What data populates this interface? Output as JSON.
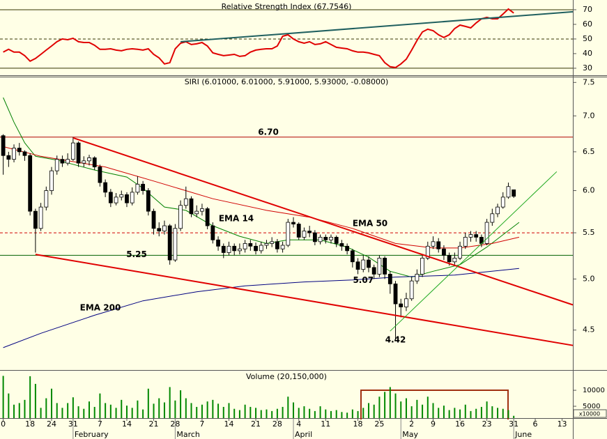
{
  "chart_data": [
    {
      "type": "line",
      "title": "Relative Strength Index (67.7546)",
      "color": "#e00000",
      "xlim": [
        -0.6,
        106
      ],
      "ylim": [
        25.2,
        75.7
      ],
      "yticks": [
        30,
        40,
        50,
        60,
        70
      ],
      "hlines": [
        {
          "value": 70,
          "color": "#333300"
        },
        {
          "value": 50,
          "color": "#333300",
          "dashed": true
        },
        {
          "value": 30,
          "color": "#333300"
        }
      ],
      "trendlines": [
        {
          "x": [
            33,
            106
          ],
          "values": [
            48.1,
            68.6
          ],
          "color": "#1f5f5f"
        }
      ],
      "x": [
        0,
        1,
        2,
        3,
        4,
        5,
        6,
        7,
        8,
        9,
        10,
        11,
        12,
        13,
        14,
        15,
        16,
        17,
        18,
        19,
        20,
        21,
        22,
        23,
        24,
        25,
        26,
        27,
        28,
        29,
        30,
        31,
        32,
        33,
        34,
        35,
        36,
        37,
        38,
        39,
        40,
        41,
        42,
        43,
        44,
        45,
        46,
        47,
        48,
        49,
        50,
        51,
        52,
        53,
        54,
        55,
        56,
        57,
        58,
        59,
        60,
        61,
        62,
        63,
        64,
        65,
        66,
        67,
        68,
        69,
        70,
        71,
        72,
        73,
        74,
        75,
        76,
        77,
        78,
        79,
        80,
        81,
        82,
        83,
        84,
        85,
        86,
        87,
        88,
        89,
        90,
        91,
        92,
        93,
        94,
        95
      ],
      "values": [
        41,
        42.9,
        41,
        41,
        38.6,
        34.8,
        36.7,
        39.5,
        42.4,
        45.2,
        48.1,
        50,
        49.5,
        50.5,
        48.1,
        47.6,
        47.6,
        45.7,
        42.9,
        42.9,
        43.3,
        42.4,
        41.9,
        42.9,
        43.3,
        42.9,
        42.4,
        43.3,
        39.5,
        37.1,
        32.9,
        33.8,
        43.3,
        47.1,
        48.1,
        46.2,
        46.7,
        47.6,
        45.2,
        40.5,
        39.5,
        38.6,
        39,
        39.5,
        38.1,
        38.6,
        41,
        42.4,
        42.9,
        43.3,
        43.3,
        45.2,
        51.9,
        52.9,
        50,
        48.1,
        47.1,
        48.1,
        46.2,
        46.7,
        48.1,
        46.2,
        44.3,
        43.8,
        43.3,
        41.9,
        41,
        41,
        40.5,
        39.5,
        38.6,
        33.8,
        31,
        30.5,
        32.9,
        36.2,
        42.4,
        49,
        54.8,
        56.7,
        55.7,
        52.9,
        51,
        52.9,
        57.1,
        59.5,
        58.6,
        57.6,
        61,
        63.8,
        64.8,
        63.8,
        63.8,
        67.1,
        70.5,
        67.7546
      ]
    },
    {
      "type": "candlestick",
      "title": "SIRI (6.01000, 6.01000, 5.91000, 5.93000, -0.08000)",
      "log_scale": true,
      "xlim": [
        -0.6,
        106
      ],
      "ylim": [
        4.15,
        7.59
      ],
      "yticks": [
        4.5,
        {
          "value": 5,
          "label": "5.0"
        },
        5.5,
        {
          "value": 6,
          "label": "6.0"
        },
        6.5,
        {
          "value": 7,
          "label": "7.0"
        },
        7.5
      ],
      "color_up": "#ffffff",
      "color_down": "#000000",
      "x": [
        0,
        1,
        2,
        3,
        4,
        5,
        6,
        7,
        8,
        9,
        10,
        11,
        12,
        13,
        14,
        15,
        16,
        17,
        18,
        19,
        20,
        21,
        22,
        23,
        24,
        25,
        26,
        27,
        28,
        29,
        30,
        31,
        32,
        33,
        34,
        35,
        36,
        37,
        38,
        39,
        40,
        41,
        42,
        43,
        44,
        45,
        46,
        47,
        48,
        49,
        50,
        51,
        52,
        53,
        54,
        55,
        56,
        57,
        58,
        59,
        60,
        61,
        62,
        63,
        64,
        65,
        66,
        67,
        68,
        69,
        70,
        71,
        72,
        73,
        74,
        75,
        76,
        77,
        78,
        79,
        80,
        81,
        82,
        83,
        84,
        85,
        86,
        87,
        88,
        89,
        90,
        91,
        92,
        93,
        94,
        95
      ],
      "open": [
        6.72,
        6.45,
        6.4,
        6.55,
        6.5,
        6.45,
        5.75,
        5.55,
        5.8,
        6.0,
        6.25,
        6.4,
        6.35,
        6.4,
        6.62,
        6.35,
        6.38,
        6.42,
        6.3,
        6.1,
        5.98,
        5.85,
        5.92,
        5.95,
        5.85,
        5.98,
        6.08,
        6.0,
        5.75,
        5.55,
        5.52,
        5.58,
        5.2,
        5.55,
        5.82,
        5.9,
        5.72,
        5.75,
        5.78,
        5.58,
        5.42,
        5.35,
        5.28,
        5.35,
        5.3,
        5.32,
        5.38,
        5.35,
        5.3,
        5.36,
        5.38,
        5.4,
        5.32,
        5.36,
        5.62,
        5.6,
        5.45,
        5.52,
        5.5,
        5.4,
        5.45,
        5.42,
        5.45,
        5.38,
        5.35,
        5.3,
        5.18,
        5.1,
        5.2,
        5.12,
        5.05,
        5.22,
        5.05,
        4.95,
        4.75,
        4.72,
        4.8,
        4.98,
        5.05,
        5.22,
        5.35,
        5.4,
        5.32,
        5.25,
        5.18,
        5.22,
        5.35,
        5.45,
        5.48,
        5.45,
        5.38,
        5.62,
        5.72,
        5.8,
        5.92,
        6.01
      ],
      "high": [
        6.74,
        6.5,
        6.6,
        6.62,
        6.52,
        6.48,
        5.78,
        5.85,
        6.05,
        6.3,
        6.45,
        6.45,
        6.48,
        6.7,
        6.64,
        6.44,
        6.46,
        6.44,
        6.33,
        6.14,
        6.02,
        5.97,
        6.0,
        5.98,
        6.04,
        6.18,
        6.12,
        6.03,
        5.78,
        5.62,
        5.64,
        5.6,
        5.6,
        5.88,
        6.05,
        5.93,
        5.82,
        5.84,
        5.8,
        5.62,
        5.46,
        5.38,
        5.4,
        5.38,
        5.38,
        5.42,
        5.42,
        5.39,
        5.4,
        5.42,
        5.45,
        5.43,
        5.4,
        5.66,
        5.68,
        5.62,
        5.56,
        5.58,
        5.53,
        5.48,
        5.48,
        5.48,
        5.47,
        5.42,
        5.38,
        5.32,
        5.22,
        5.25,
        5.24,
        5.15,
        5.25,
        5.24,
        5.08,
        4.98,
        4.8,
        4.86,
        5.02,
        5.1,
        5.26,
        5.4,
        5.46,
        5.44,
        5.36,
        5.28,
        5.28,
        5.4,
        5.5,
        5.52,
        5.52,
        5.48,
        5.66,
        5.78,
        5.84,
        5.98,
        6.1,
        6.01
      ],
      "low": [
        6.2,
        6.3,
        6.36,
        6.45,
        6.38,
        5.7,
        5.28,
        5.52,
        5.76,
        5.95,
        6.2,
        6.3,
        6.32,
        6.38,
        6.3,
        6.3,
        6.32,
        6.26,
        6.05,
        5.92,
        5.8,
        5.82,
        5.88,
        5.8,
        5.82,
        5.95,
        5.95,
        5.7,
        5.48,
        5.46,
        5.48,
        5.15,
        5.18,
        5.52,
        5.78,
        5.68,
        5.68,
        5.7,
        5.54,
        5.38,
        5.3,
        5.22,
        5.25,
        5.25,
        5.26,
        5.28,
        5.3,
        5.26,
        5.27,
        5.32,
        5.34,
        5.28,
        5.28,
        5.34,
        5.56,
        5.42,
        5.42,
        5.45,
        5.36,
        5.37,
        5.38,
        5.38,
        5.34,
        5.3,
        5.26,
        5.12,
        5.05,
        5.07,
        5.07,
        5.0,
        5.02,
        5.0,
        4.85,
        4.42,
        4.62,
        4.68,
        4.78,
        4.95,
        5.02,
        5.2,
        5.32,
        5.28,
        5.2,
        5.14,
        5.15,
        5.2,
        5.32,
        5.4,
        5.4,
        5.34,
        5.36,
        5.58,
        5.68,
        5.78,
        5.9,
        5.91
      ],
      "close": [
        6.45,
        6.4,
        6.55,
        6.5,
        6.45,
        5.75,
        5.55,
        5.8,
        6.0,
        6.25,
        6.4,
        6.35,
        6.4,
        6.62,
        6.35,
        6.38,
        6.42,
        6.3,
        6.1,
        5.98,
        5.85,
        5.92,
        5.95,
        5.85,
        5.98,
        6.08,
        6.0,
        5.75,
        5.55,
        5.52,
        5.58,
        5.2,
        5.55,
        5.82,
        5.9,
        5.72,
        5.75,
        5.78,
        5.58,
        5.42,
        5.35,
        5.28,
        5.35,
        5.3,
        5.32,
        5.38,
        5.35,
        5.3,
        5.36,
        5.38,
        5.4,
        5.32,
        5.36,
        5.62,
        5.6,
        5.45,
        5.52,
        5.5,
        5.4,
        5.45,
        5.42,
        5.45,
        5.38,
        5.35,
        5.3,
        5.18,
        5.1,
        5.2,
        5.12,
        5.05,
        5.22,
        5.05,
        4.95,
        4.75,
        4.72,
        4.8,
        4.98,
        5.05,
        5.22,
        5.35,
        5.4,
        5.32,
        5.25,
        5.18,
        5.22,
        5.35,
        5.45,
        5.48,
        5.45,
        5.38,
        5.62,
        5.72,
        5.8,
        5.92,
        6.05,
        5.93
      ],
      "series": [
        {
          "name": "EMA 14",
          "color": "#008000",
          "x": [
            0,
            2,
            4,
            6,
            10,
            17,
            23,
            26,
            30,
            34,
            39,
            44,
            49,
            53,
            59,
            64,
            68,
            72,
            76,
            80,
            85,
            90,
            96
          ],
          "values": [
            7.27,
            6.91,
            6.62,
            6.44,
            6.39,
            6.26,
            6.17,
            6.03,
            5.8,
            5.76,
            5.58,
            5.46,
            5.38,
            5.42,
            5.42,
            5.34,
            5.23,
            5.08,
            5.02,
            5.08,
            5.15,
            5.34,
            5.62
          ]
        },
        {
          "name": "EMA 50",
          "color": "#d00000",
          "x": [
            0,
            7,
            19,
            28,
            39,
            49,
            57,
            65,
            73,
            80,
            85,
            91,
            96
          ],
          "values": [
            6.57,
            6.44,
            6.3,
            6.12,
            5.9,
            5.76,
            5.68,
            5.55,
            5.38,
            5.33,
            5.33,
            5.38,
            5.45
          ]
        },
        {
          "name": "EMA 200",
          "color": "#000080",
          "x": [
            0,
            7,
            17,
            26,
            36,
            45,
            56,
            65,
            73,
            84,
            96
          ],
          "values": [
            4.34,
            4.47,
            4.64,
            4.78,
            4.87,
            4.93,
            4.97,
            4.99,
            5.02,
            5.04,
            5.11
          ]
        }
      ],
      "levels": [
        {
          "value": 6.7,
          "label": "6.70",
          "color": "#b00000"
        },
        {
          "value": 5.25,
          "label": "5.25",
          "color": "#006000"
        },
        {
          "value": 5.5,
          "color": "#d00000",
          "dashed": true
        }
      ],
      "trendlines": [
        {
          "x": [
            13,
            106
          ],
          "values": [
            6.69,
            4.74
          ],
          "color": "#e00000"
        },
        {
          "x": [
            6,
            106
          ],
          "values": [
            5.26,
            4.36
          ],
          "color": "#e00000"
        },
        {
          "x": [
            72,
            103
          ],
          "values": [
            4.49,
            6.24
          ],
          "color": "#22aa22"
        }
      ],
      "annotations": [
        {
          "x": 67,
          "value": 5.07,
          "label": "5.07",
          "color": "#008000"
        },
        {
          "x": 73,
          "value": 4.42,
          "label": "4.42",
          "color": "#008000"
        }
      ]
    },
    {
      "type": "bar",
      "title": "Volume (20,150,000)",
      "color": "#008800",
      "xlim": [
        -0.6,
        106
      ],
      "ylim": [
        1300,
        15900
      ],
      "yticks": [
        5000,
        10000
      ],
      "y_unit_label": "x10000",
      "x": [
        0,
        1,
        2,
        3,
        4,
        5,
        6,
        7,
        8,
        9,
        10,
        11,
        12,
        13,
        14,
        15,
        16,
        17,
        18,
        19,
        20,
        21,
        22,
        23,
        24,
        25,
        26,
        27,
        28,
        29,
        30,
        31,
        32,
        33,
        34,
        35,
        36,
        37,
        38,
        39,
        40,
        41,
        42,
        43,
        44,
        45,
        46,
        47,
        48,
        49,
        50,
        51,
        52,
        53,
        54,
        55,
        56,
        57,
        58,
        59,
        60,
        61,
        62,
        63,
        64,
        65,
        66,
        67,
        68,
        69,
        70,
        71,
        72,
        73,
        74,
        75,
        76,
        77,
        78,
        79,
        80,
        81,
        82,
        83,
        84,
        85,
        86,
        87,
        88,
        89,
        90,
        91,
        92,
        93,
        94,
        95
      ],
      "values": [
        14500,
        9000,
        5500,
        6000,
        7000,
        14400,
        12000,
        4500,
        7500,
        10500,
        6000,
        4500,
        6000,
        7800,
        5000,
        4200,
        6500,
        4800,
        9000,
        6000,
        5500,
        4500,
        7000,
        5200,
        4500,
        6800,
        4000,
        10500,
        5800,
        7500,
        6200,
        11000,
        6800,
        10000,
        7500,
        6000,
        4800,
        5500,
        6500,
        7000,
        5800,
        4800,
        6000,
        4200,
        3800,
        5500,
        4800,
        4500,
        3800,
        4000,
        3500,
        4200,
        4800,
        8000,
        6200,
        4500,
        5000,
        4200,
        3500,
        5000,
        4000,
        3500,
        3800,
        3200,
        3000,
        4000,
        3500,
        4500,
        6000,
        5500,
        8000,
        9500,
        11000,
        9000,
        6500,
        7500,
        5000,
        7000,
        5500,
        8000,
        6000,
        4500,
        5200,
        3800,
        4500,
        4000,
        5500,
        3500,
        4200,
        4800,
        6500,
        5000,
        4500,
        4200,
        3800,
        2015
      ],
      "xticks": [
        0,
        {
          "value": 5,
          "label": "18"
        },
        {
          "value": 9,
          "label": "24"
        },
        {
          "value": 13,
          "label": "31"
        },
        {
          "value": 18,
          "label": "7"
        },
        {
          "value": 23,
          "label": "14"
        },
        {
          "value": 28,
          "label": "21"
        },
        {
          "value": 32,
          "label": "28"
        },
        {
          "value": 37,
          "label": "7"
        },
        {
          "value": 42,
          "label": "14"
        },
        {
          "value": 47,
          "label": "21"
        },
        {
          "value": 51,
          "label": "28"
        },
        {
          "value": 55,
          "label": "4"
        },
        {
          "value": 60,
          "label": "11"
        },
        {
          "value": 66,
          "label": "18"
        },
        {
          "value": 70,
          "label": "25"
        },
        {
          "value": 76,
          "label": "2"
        },
        {
          "value": 80,
          "label": "9"
        },
        {
          "value": 85,
          "label": "16"
        },
        {
          "value": 90,
          "label": "23"
        },
        {
          "value": 95,
          "label": "31"
        },
        {
          "value": 99,
          "label": "6"
        },
        {
          "value": 104,
          "label": "13"
        }
      ],
      "month_labels": [
        {
          "value": 13,
          "label": "February"
        },
        {
          "value": 32,
          "label": "March"
        },
        {
          "value": 54,
          "label": "April"
        },
        {
          "value": 74,
          "label": "May"
        },
        {
          "value": 95,
          "label": "June"
        }
      ]
    }
  ]
}
